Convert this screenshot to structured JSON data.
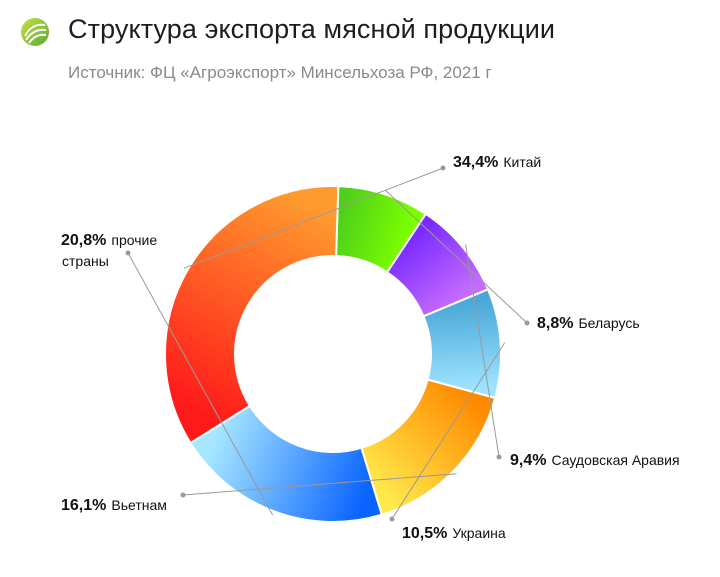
{
  "header": {
    "title": "Структура экспорта мясной продукции",
    "subtitle": "Источник: ФЦ «Агроэкспорт» Минсельхоза РФ, 2021 г"
  },
  "chart_data": {
    "type": "pie",
    "variant": "donut",
    "title": "Структура экспорта мясной продукции",
    "subtitle": "Источник: ФЦ «Агроэкспорт» Минсельхоза РФ, 2021 г",
    "unit": "%",
    "slices": [
      {
        "label": "Китай",
        "value": 34.4,
        "value_label": "34,4%",
        "colors": [
          "#ff1a1a",
          "#ff9a2e"
        ]
      },
      {
        "label": "Беларусь",
        "value": 8.8,
        "value_label": "8,8%",
        "colors": [
          "#4fcf1a",
          "#7cff00"
        ]
      },
      {
        "label": "Саудовская Аравия",
        "value": 9.4,
        "value_label": "9,4%",
        "colors": [
          "#7a2cff",
          "#c66bff"
        ]
      },
      {
        "label": "Украина",
        "value": 10.5,
        "value_label": "10,5%",
        "colors": [
          "#4aa8d8",
          "#9ee3ff"
        ]
      },
      {
        "label": "Вьетнам",
        "value": 16.1,
        "value_label": "16,1%",
        "colors": [
          "#ff8a00",
          "#ffe84a"
        ]
      },
      {
        "label": "прочие страны",
        "label_lines": [
          "прочие",
          "страны"
        ],
        "value": 20.8,
        "value_label": "20,8%",
        "colors": [
          "#0a64ff",
          "#a6e6ff"
        ]
      }
    ],
    "legend": "none"
  }
}
